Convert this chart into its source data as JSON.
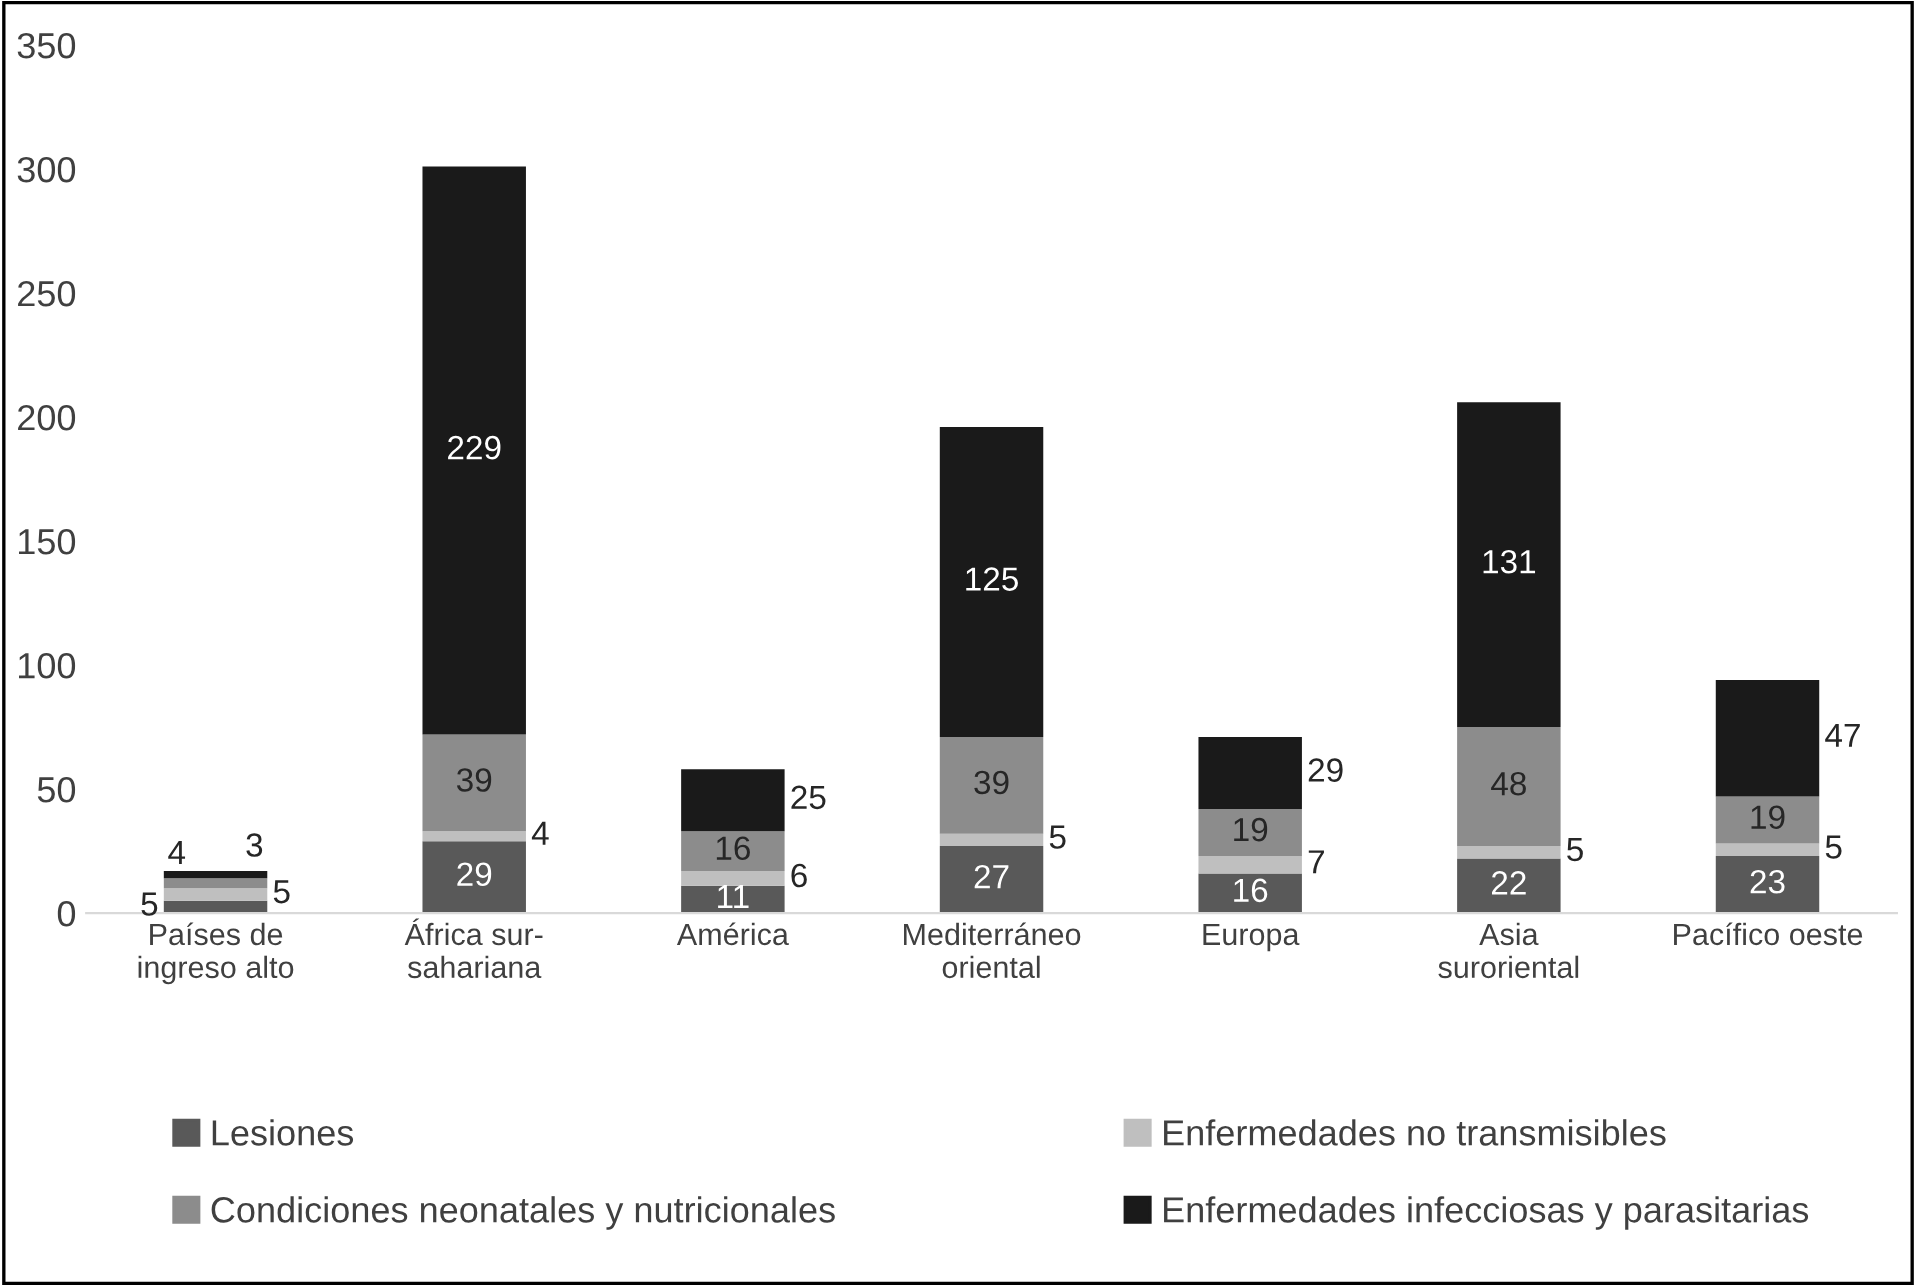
{
  "chart_data": {
    "type": "bar",
    "stacked": true,
    "categories": [
      "Países de\ningreso alto",
      "África sur-\nsahariana",
      "América",
      "Mediterráneo\noriental",
      "Europa",
      "Asia\nsuroriental",
      "Pacífico oeste"
    ],
    "series": [
      {
        "name": "Lesiones",
        "color": "#595959",
        "values": [
          5,
          29,
          11,
          27,
          16,
          22,
          23
        ]
      },
      {
        "name": "Enfermedades no transmisibles",
        "color": "#bfbfbf",
        "values": [
          5,
          4,
          6,
          5,
          7,
          5,
          5
        ]
      },
      {
        "name": "Condiciones neonatales y nutricionales",
        "color": "#8c8c8c",
        "values": [
          4,
          39,
          16,
          39,
          19,
          48,
          19
        ]
      },
      {
        "name": "Enfermedades infecciosas y parasitarias",
        "color": "#1a1a1a",
        "values": [
          3,
          229,
          25,
          125,
          29,
          131,
          47
        ]
      }
    ],
    "ylim": [
      0,
      350
    ],
    "yticks": [
      0,
      50,
      100,
      150,
      200,
      250,
      300,
      350
    ],
    "data_labels": true,
    "grid": false,
    "legend": "bottom"
  }
}
